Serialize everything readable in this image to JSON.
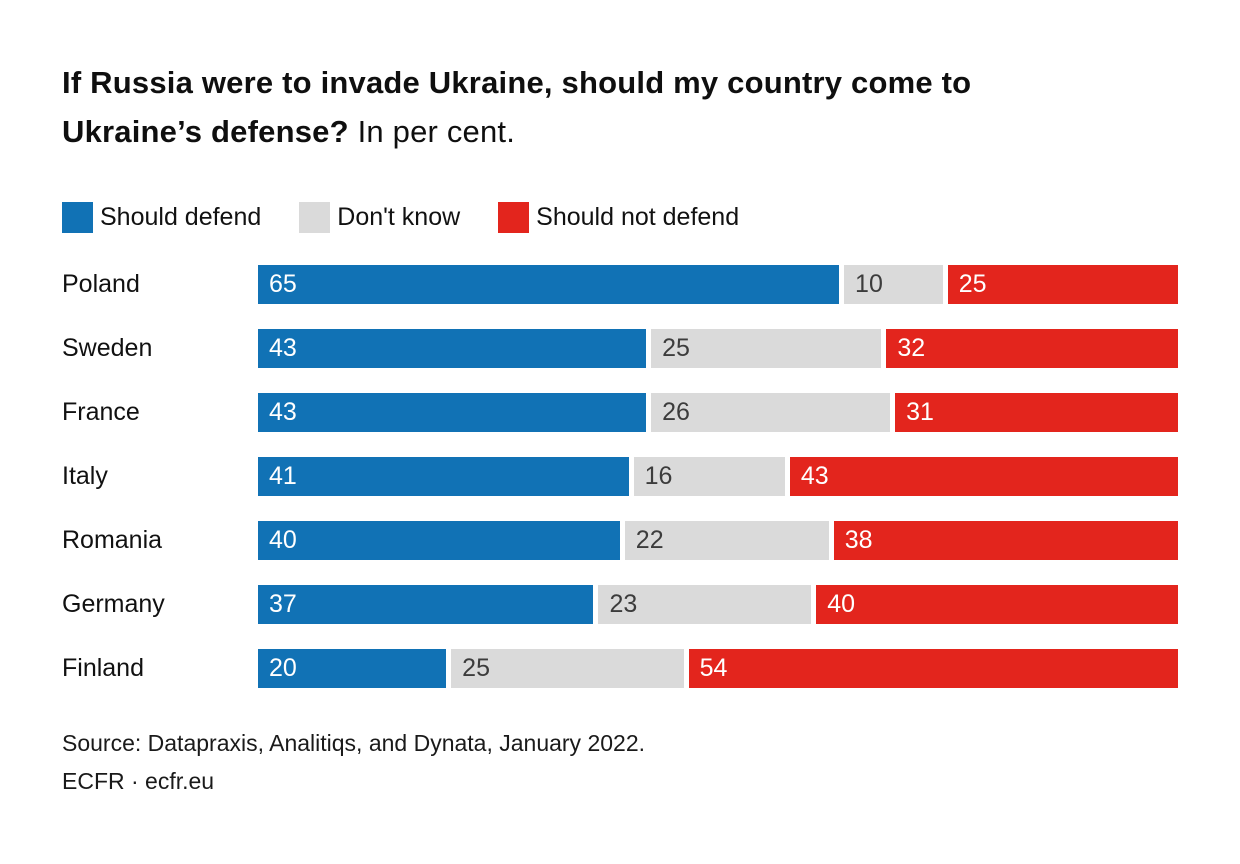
{
  "header": {
    "title_line1": "If Russia were to invade Ukraine, should my country come to",
    "title_line2_bold": "Ukraine’s defense?",
    "title_line2_regular": "In per cent."
  },
  "chart_data": {
    "type": "bar",
    "orientation": "horizontal",
    "stacked": true,
    "unit": "per cent",
    "xlim": [
      0,
      100
    ],
    "grid": false,
    "legend_position": "top",
    "title": "If Russia were to invade Ukraine, should my country come to Ukraine’s defense? In per cent.",
    "categories": [
      "Poland",
      "Sweden",
      "France",
      "Italy",
      "Romania",
      "Germany",
      "Finland"
    ],
    "series": [
      {
        "name": "Should defend",
        "color": "#1172b5",
        "text_color": "#ffffff",
        "values": [
          65,
          43,
          43,
          41,
          40,
          37,
          20
        ]
      },
      {
        "name": "Don't know",
        "color": "#dadada",
        "text_color": "#3c3c3c",
        "values": [
          10,
          25,
          26,
          16,
          22,
          23,
          25
        ]
      },
      {
        "name": "Should not defend",
        "color": "#e3251d",
        "text_color": "#ffffff",
        "values": [
          25,
          32,
          31,
          43,
          38,
          40,
          54
        ]
      }
    ]
  },
  "footer": {
    "source": "Source: Datapraxis, Analitiqs, and Dynata, January 2022.",
    "credit": "ECFR · ecfr.eu"
  }
}
